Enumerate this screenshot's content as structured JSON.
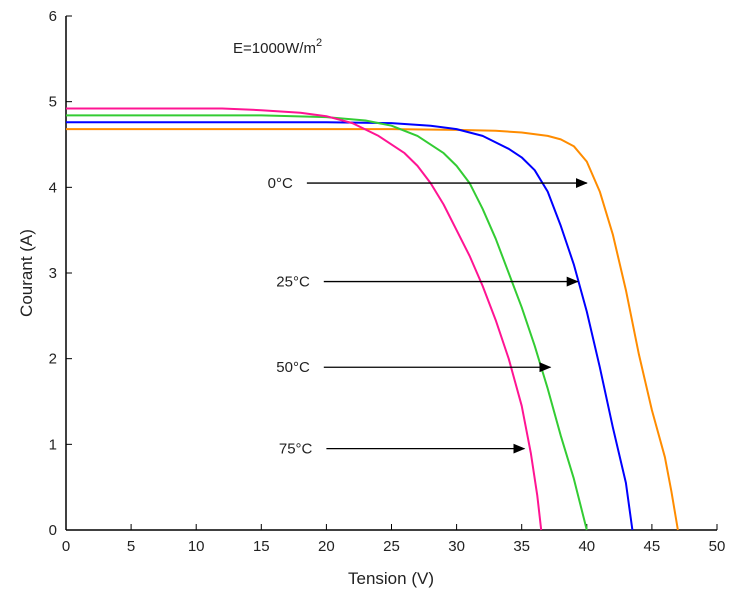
{
  "chart_data": {
    "type": "line",
    "xlabel": "Tension (V)",
    "ylabel": "Courant (A)",
    "xlim": [
      0,
      50
    ],
    "ylim": [
      0,
      6
    ],
    "xticks": [
      0,
      5,
      10,
      15,
      20,
      25,
      30,
      35,
      40,
      45,
      50
    ],
    "yticks": [
      0,
      1,
      2,
      3,
      4,
      5,
      6
    ],
    "grid": false,
    "annotation": {
      "prefix": "E=1000W/m",
      "superscript": "2"
    },
    "series": [
      {
        "name": "0°C",
        "color": "#ff8c00",
        "points": [
          [
            0,
            4.68
          ],
          [
            20,
            4.68
          ],
          [
            25,
            4.68
          ],
          [
            30,
            4.67
          ],
          [
            33,
            4.66
          ],
          [
            35,
            4.64
          ],
          [
            37,
            4.6
          ],
          [
            38,
            4.56
          ],
          [
            39,
            4.48
          ],
          [
            40,
            4.3
          ],
          [
            41,
            3.95
          ],
          [
            42,
            3.45
          ],
          [
            43,
            2.8
          ],
          [
            44,
            2.05
          ],
          [
            45,
            1.4
          ],
          [
            46,
            0.85
          ],
          [
            46.5,
            0.45
          ],
          [
            47,
            0
          ]
        ]
      },
      {
        "name": "25°C",
        "color": "#0000ff",
        "points": [
          [
            0,
            4.76
          ],
          [
            20,
            4.76
          ],
          [
            25,
            4.75
          ],
          [
            28,
            4.72
          ],
          [
            30,
            4.68
          ],
          [
            32,
            4.6
          ],
          [
            34,
            4.45
          ],
          [
            35,
            4.35
          ],
          [
            36,
            4.2
          ],
          [
            37,
            3.95
          ],
          [
            38,
            3.55
          ],
          [
            39,
            3.1
          ],
          [
            40,
            2.55
          ],
          [
            41,
            1.9
          ],
          [
            42,
            1.2
          ],
          [
            43,
            0.55
          ],
          [
            43.5,
            0
          ]
        ]
      },
      {
        "name": "50°C",
        "color": "#33cc33",
        "points": [
          [
            0,
            4.84
          ],
          [
            15,
            4.84
          ],
          [
            20,
            4.82
          ],
          [
            23,
            4.78
          ],
          [
            25,
            4.72
          ],
          [
            27,
            4.6
          ],
          [
            29,
            4.4
          ],
          [
            30,
            4.25
          ],
          [
            31,
            4.05
          ],
          [
            32,
            3.75
          ],
          [
            33,
            3.4
          ],
          [
            34,
            3.0
          ],
          [
            35,
            2.6
          ],
          [
            36,
            2.15
          ],
          [
            37,
            1.65
          ],
          [
            38,
            1.1
          ],
          [
            39,
            0.6
          ],
          [
            40,
            0
          ]
        ]
      },
      {
        "name": "75°C",
        "color": "#ff1493",
        "points": [
          [
            0,
            4.92
          ],
          [
            12,
            4.92
          ],
          [
            15,
            4.9
          ],
          [
            18,
            4.87
          ],
          [
            20,
            4.83
          ],
          [
            22,
            4.75
          ],
          [
            24,
            4.6
          ],
          [
            26,
            4.4
          ],
          [
            27,
            4.25
          ],
          [
            28,
            4.05
          ],
          [
            29,
            3.8
          ],
          [
            30,
            3.5
          ],
          [
            31,
            3.2
          ],
          [
            32,
            2.85
          ],
          [
            33,
            2.45
          ],
          [
            34,
            2.0
          ],
          [
            35,
            1.45
          ],
          [
            35.7,
            0.9
          ],
          [
            36.2,
            0.4
          ],
          [
            36.5,
            0
          ]
        ]
      }
    ],
    "arrows": [
      {
        "label": "0°C",
        "x_start": 18.5,
        "x_end": 40,
        "y": 4.05
      },
      {
        "label": "25°C",
        "x_start": 19.8,
        "x_end": 39.3,
        "y": 2.9
      },
      {
        "label": "50°C",
        "x_start": 19.8,
        "x_end": 37.2,
        "y": 1.9
      },
      {
        "label": "75°C",
        "x_start": 20,
        "x_end": 35.2,
        "y": 0.95
      }
    ]
  }
}
